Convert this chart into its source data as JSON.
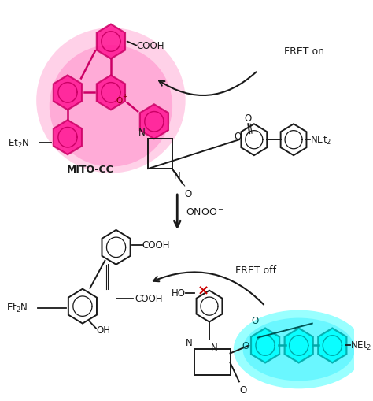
{
  "figure_width": 4.74,
  "figure_height": 5.1,
  "dpi": 100,
  "bg_color": "#ffffff",
  "pink_fill": "#ff1493",
  "pink_edge": "#cc0066",
  "pink_glow": "#ff69b4",
  "cyan_fill": "#00ffff",
  "cyan_edge": "#00aaaa",
  "black": "#1a1a1a",
  "fret_on": "FRET on",
  "fret_off": "FRET off",
  "onoo": "ONOO",
  "mito_cc": "MITO-CC",
  "fs": 8.5
}
